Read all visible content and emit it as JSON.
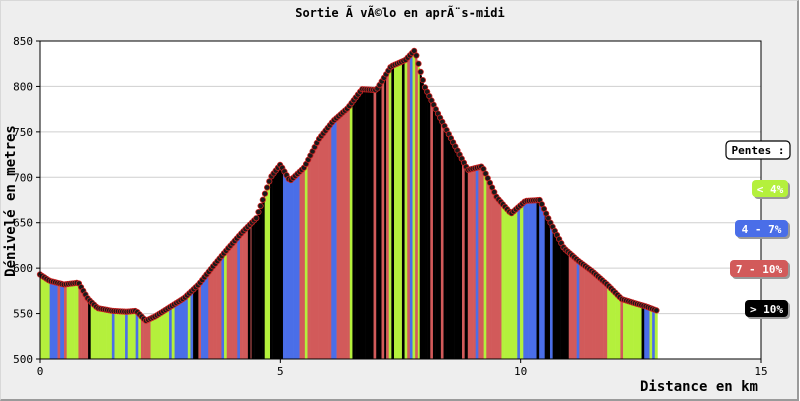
{
  "chart_data": {
    "type": "area",
    "title": "Sortie Ã  vÃ©lo en aprÃ¨s-midi",
    "xlabel": "Distance en km",
    "ylabel": "Dénivelé en metres",
    "xlim": [
      0,
      15
    ],
    "ylim": [
      500,
      850
    ],
    "x_ticks": [
      "0",
      "5",
      "10",
      "15"
    ],
    "y_ticks": [
      "500",
      "550",
      "600",
      "650",
      "700",
      "750",
      "800",
      "850"
    ],
    "grid": "horizontal",
    "legend": {
      "title": "Pentes :",
      "placement": "right",
      "items": [
        {
          "label": "< 4%",
          "color": "#b4f03c"
        },
        {
          "label": "4 - 7%",
          "color": "#4a6ee8"
        },
        {
          "label": "7 - 10%",
          "color": "#d25a5a"
        },
        {
          "label": "> 10%",
          "color": "#000000"
        }
      ]
    },
    "profile": {
      "x": [
        0.0,
        0.2,
        0.5,
        0.8,
        1.0,
        1.2,
        1.5,
        1.8,
        2.0,
        2.2,
        2.4,
        2.7,
        3.0,
        3.3,
        3.6,
        3.9,
        4.2,
        4.5,
        4.8,
        5.0,
        5.2,
        5.5,
        5.8,
        6.1,
        6.4,
        6.7,
        7.0,
        7.3,
        7.6,
        7.8,
        8.0,
        8.3,
        8.6,
        8.9,
        9.2,
        9.5,
        9.8,
        10.1,
        10.4,
        10.6,
        10.9,
        11.2,
        11.5,
        11.8,
        12.1,
        12.4,
        12.6,
        12.85
      ],
      "y": [
        593,
        586,
        582,
        584,
        566,
        556,
        553,
        552,
        553,
        542,
        547,
        557,
        567,
        582,
        602,
        621,
        639,
        655,
        700,
        714,
        696,
        711,
        742,
        762,
        776,
        797,
        796,
        822,
        829,
        840,
        800,
        768,
        738,
        708,
        712,
        678,
        660,
        674,
        675,
        652,
        622,
        608,
        596,
        582,
        566,
        561,
        558,
        553
      ]
    },
    "segments": [
      {
        "from": 0.0,
        "to": 0.2,
        "pente": "< 4%"
      },
      {
        "from": 0.2,
        "to": 0.5,
        "pente": "4 - 7%"
      },
      {
        "from": 0.5,
        "to": 0.8,
        "pente": "< 4%"
      },
      {
        "from": 0.8,
        "to": 1.0,
        "pente": "7 - 10%"
      },
      {
        "from": 1.0,
        "to": 2.1,
        "pente": "< 4%"
      },
      {
        "from": 2.1,
        "to": 2.3,
        "pente": "7 - 10%"
      },
      {
        "from": 2.3,
        "to": 2.8,
        "pente": "< 4%"
      },
      {
        "from": 2.8,
        "to": 3.5,
        "pente": "4 - 7%"
      },
      {
        "from": 3.5,
        "to": 4.4,
        "pente": "7 - 10%"
      },
      {
        "from": 4.4,
        "to": 5.0,
        "pente": "> 10%"
      },
      {
        "from": 5.0,
        "to": 5.4,
        "pente": "4 - 7%"
      },
      {
        "from": 5.4,
        "to": 6.5,
        "pente": "7 - 10%"
      },
      {
        "from": 6.5,
        "to": 7.2,
        "pente": "> 10%"
      },
      {
        "from": 7.2,
        "to": 7.9,
        "pente": "< 4%"
      },
      {
        "from": 7.9,
        "to": 8.9,
        "pente": "> 10%"
      },
      {
        "from": 8.9,
        "to": 9.6,
        "pente": "7 - 10%"
      },
      {
        "from": 9.6,
        "to": 10.0,
        "pente": "< 4%"
      },
      {
        "from": 10.0,
        "to": 10.5,
        "pente": "4 - 7%"
      },
      {
        "from": 10.5,
        "to": 11.0,
        "pente": "> 10%"
      },
      {
        "from": 11.0,
        "to": 11.8,
        "pente": "7 - 10%"
      },
      {
        "from": 11.8,
        "to": 12.85,
        "pente": "< 4%"
      }
    ]
  }
}
